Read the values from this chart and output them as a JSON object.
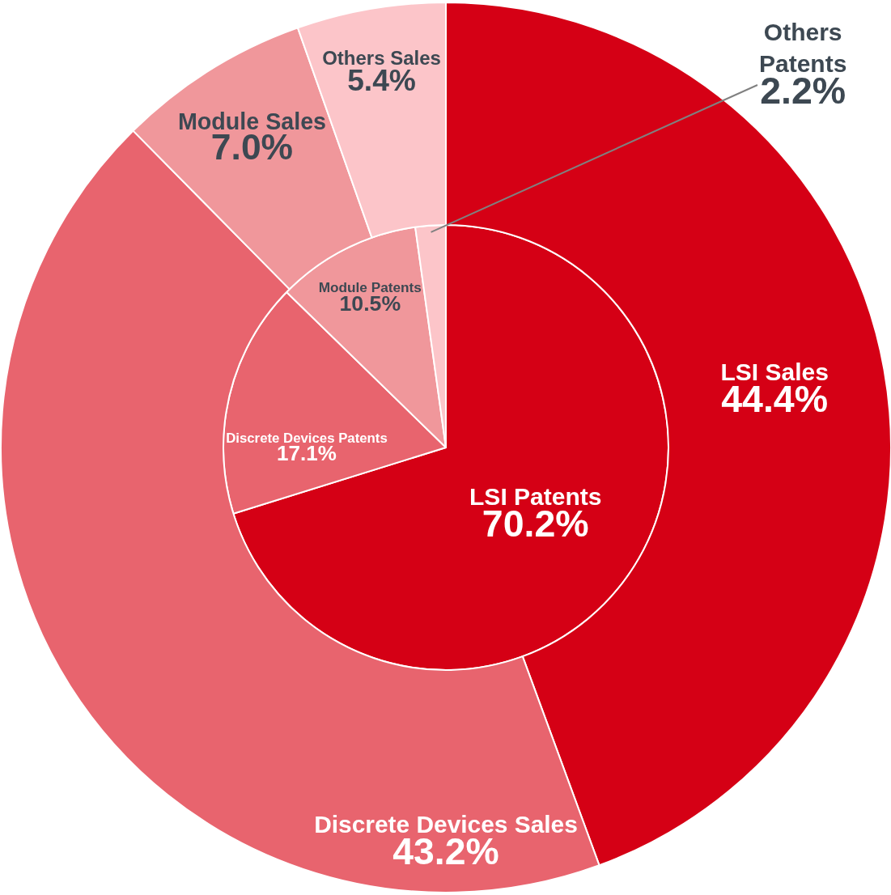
{
  "chart_data": [
    {
      "type": "donut",
      "categories": [
        "LSI Sales",
        "Discrete Devices Sales",
        "Module Sales",
        "Others Sales"
      ],
      "values": [
        44.4,
        43.2,
        7.0,
        5.4
      ],
      "value_labels": [
        "44.4%",
        "43.2%",
        "7.0%",
        "5.4%"
      ],
      "colors": [
        "#d50015",
        "#e8646e",
        "#f0979b",
        "#fcc5c9"
      ],
      "legend": false
    },
    {
      "type": "pie",
      "categories": [
        "LSI Patents",
        "Discrete Devices Patents",
        "Module Patents",
        "Others Patents"
      ],
      "values": [
        70.2,
        17.1,
        10.5,
        2.2
      ],
      "value_labels": [
        "70.2%",
        "17.1%",
        "10.5%",
        "2.2%"
      ],
      "colors": [
        "#d50015",
        "#e8646e",
        "#f0979b",
        "#fcc5c9"
      ],
      "legend": false
    }
  ]
}
